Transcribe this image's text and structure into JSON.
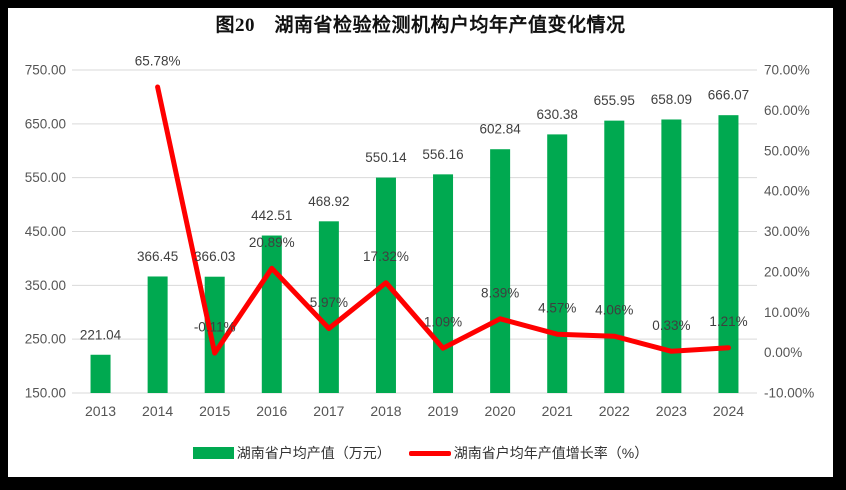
{
  "title": "图20　湖南省检验检测机构户均年产值变化情况",
  "colors": {
    "bar": "#00A950",
    "line": "#FF0000",
    "grid": "#D9D9D9",
    "axis_text": "#555555",
    "data_label_text": "#3F3F3F",
    "frame": "#000000",
    "paper": "#FFFFFF"
  },
  "legend": [
    {
      "label": "湖南省户均产值（万元）",
      "series": "bar"
    },
    {
      "label": "湖南省户均年产值增长率（%）",
      "series": "line"
    }
  ],
  "chart_data": {
    "type": "combo_bar_line",
    "title": "图20　湖南省检验检测机构户均年产值变化情况",
    "categories": [
      "2013",
      "2014",
      "2015",
      "2016",
      "2017",
      "2018",
      "2019",
      "2020",
      "2021",
      "2022",
      "2023",
      "2024"
    ],
    "series": [
      {
        "name": "湖南省户均产值（万元）",
        "type": "bar",
        "axis": "left",
        "color": "#00A950",
        "values": [
          221.04,
          366.45,
          366.03,
          442.51,
          468.92,
          550.14,
          556.16,
          602.84,
          630.38,
          655.95,
          658.09,
          666.07
        ]
      },
      {
        "name": "湖南省户均年产值增长率（%）",
        "type": "line",
        "axis": "right",
        "color": "#FF0000",
        "values": [
          null,
          65.78,
          -0.11,
          20.89,
          5.97,
          17.32,
          1.09,
          8.39,
          4.57,
          4.06,
          0.33,
          1.21
        ]
      }
    ],
    "left_axis": {
      "min": 150,
      "max": 750,
      "step": 100,
      "ticks": [
        "150.00",
        "250.00",
        "350.00",
        "450.00",
        "550.00",
        "650.00",
        "750.00"
      ]
    },
    "right_axis": {
      "min": -10,
      "max": 70,
      "step": 10,
      "ticks": [
        "-10.00%",
        "0.00%",
        "10.00%",
        "20.00%",
        "30.00%",
        "40.00%",
        "50.00%",
        "60.00%",
        "70.00%"
      ]
    },
    "grid": true,
    "data_labels": true,
    "legend_position": "bottom"
  }
}
